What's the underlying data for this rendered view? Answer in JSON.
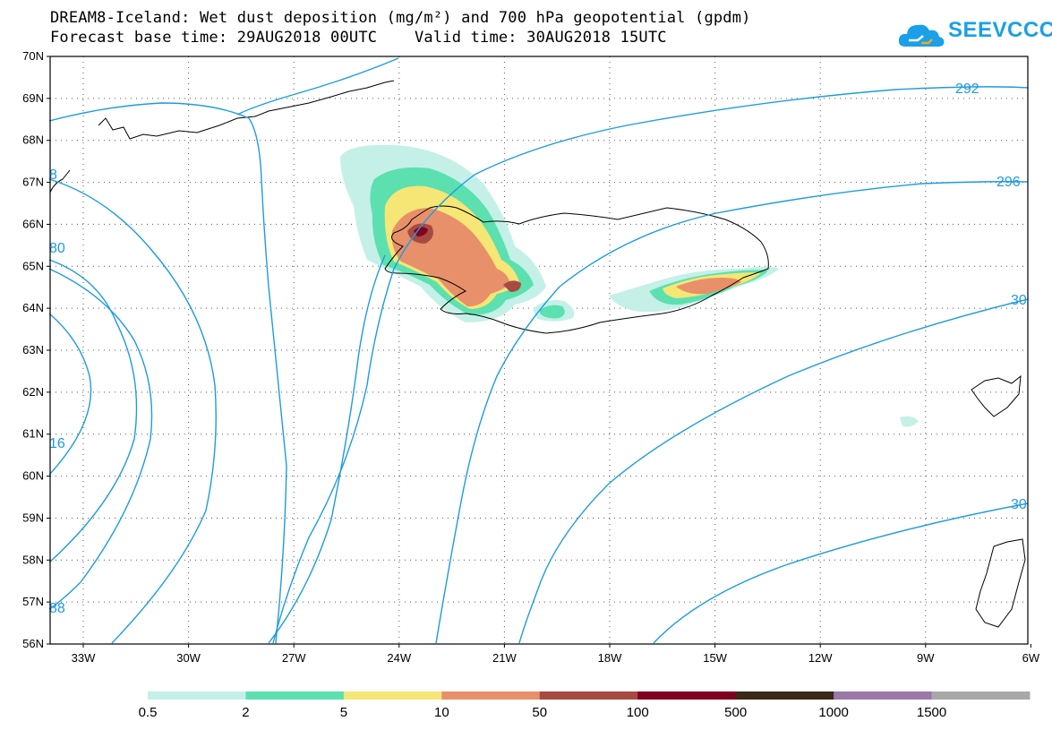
{
  "header": {
    "line1": "DREAM8-Iceland: Wet dust deposition (mg/m²) and 700 hPa geopotential (gpdm)",
    "line2": "Forecast base time: 29AUG2018 00UTC    Valid time: 30AUG2018 15UTC"
  },
  "logo": {
    "text": "SEEVCCC",
    "color": "#1aa0e8"
  },
  "axes": {
    "lat_labels": [
      "70N",
      "69N",
      "68N",
      "67N",
      "66N",
      "65N",
      "64N",
      "63N",
      "62N",
      "61N",
      "60N",
      "59N",
      "58N",
      "57N",
      "56N"
    ],
    "lon_labels": [
      "33W",
      "30W",
      "27W",
      "24W",
      "21W",
      "18W",
      "15W",
      "12W",
      "9W",
      "6W"
    ]
  },
  "contours": {
    "color": "#1e9be0",
    "labels": [
      "292",
      "296",
      "30",
      "30",
      "88",
      "80",
      "16",
      "8"
    ]
  },
  "legend": {
    "labels": [
      "0.5",
      "2",
      "5",
      "10",
      "50",
      "100",
      "500",
      "1000",
      "1500"
    ],
    "colors": [
      "#c4f0e8",
      "#5ce0b0",
      "#f5e676",
      "#e8906a",
      "#a84a42",
      "#800020",
      "#3a2818",
      "#9a78a8",
      "#a8a8a8"
    ]
  }
}
